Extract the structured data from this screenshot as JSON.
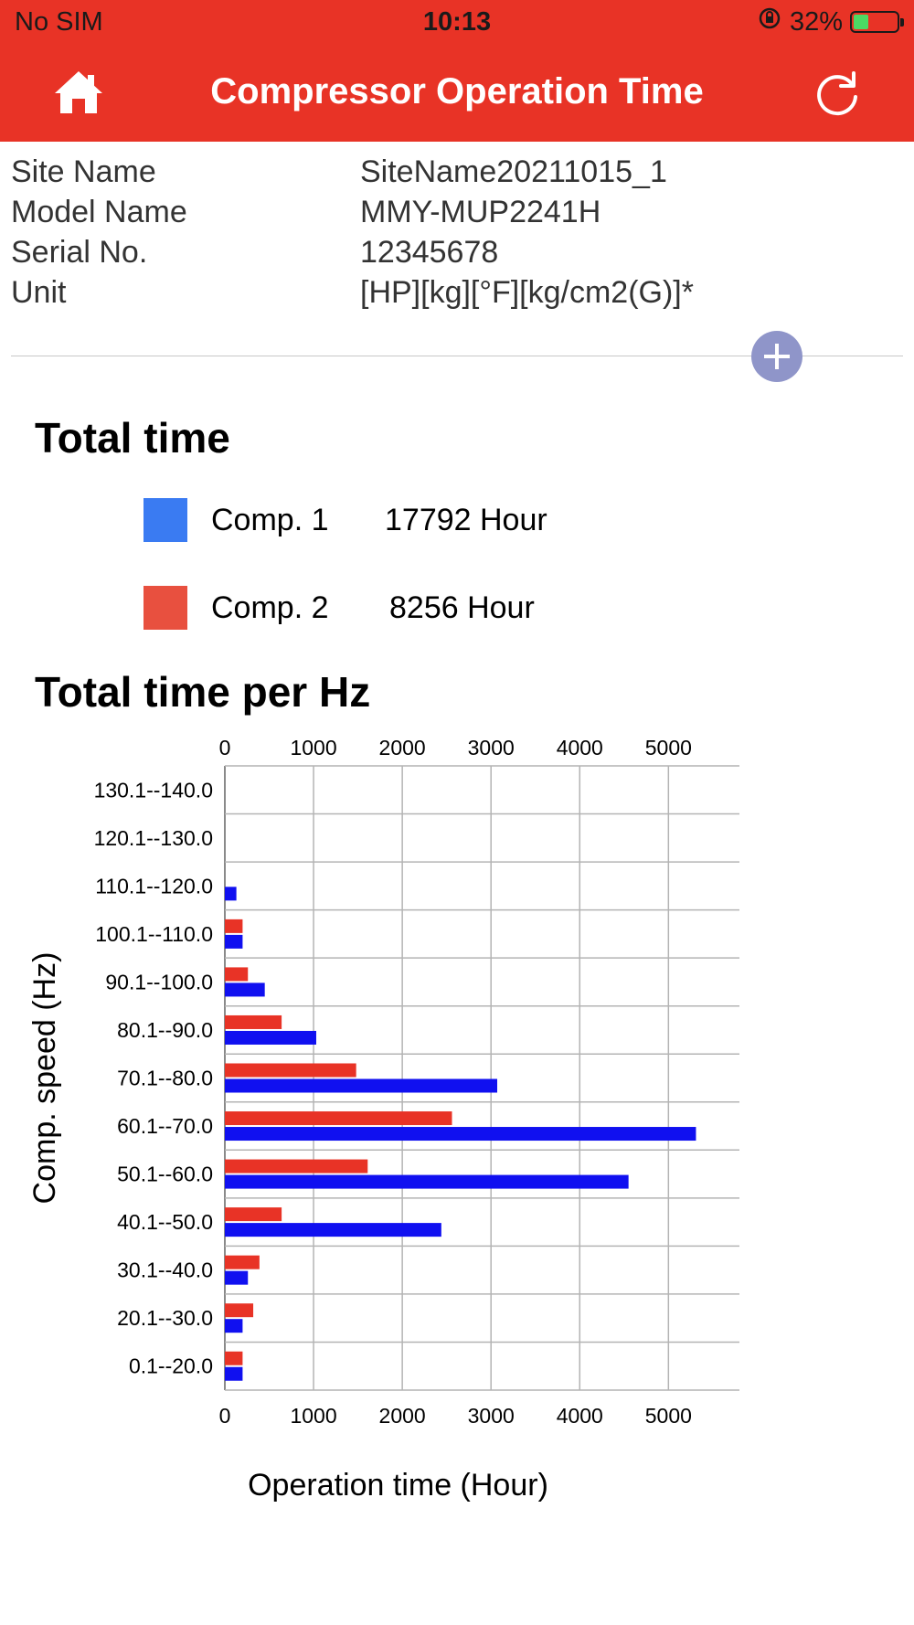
{
  "status": {
    "carrier": "No SIM",
    "time": "10:13",
    "battery": "32%"
  },
  "header": {
    "title": "Compressor Operation Time"
  },
  "info": [
    {
      "label": "Site Name",
      "value": "SiteName20211015_1"
    },
    {
      "label": "Model Name",
      "value": "MMY-MUP2241H"
    },
    {
      "label": "Serial No.",
      "value": "12345678"
    },
    {
      "label": "Unit",
      "value": "[HP][kg][°F][kg/cm2(G)]*"
    }
  ],
  "total_time": {
    "title": "Total time",
    "items": [
      {
        "name": "Comp. 1",
        "value": "17792 Hour",
        "color": "#3a7bf2"
      },
      {
        "name": "Comp. 2",
        "value": "8256 Hour",
        "color": "#e8503f"
      }
    ]
  },
  "chart_section": {
    "title": "Total time per Hz"
  },
  "chart_data": {
    "type": "bar",
    "orientation": "horizontal",
    "xlabel": "Operation time (Hour)",
    "ylabel": "Comp. speed (Hz)",
    "xlim": [
      0,
      5800
    ],
    "xticks": [
      0,
      1000,
      2000,
      3000,
      4000,
      5000
    ],
    "categories": [
      "130.1--140.0",
      "120.1--130.0",
      "110.1--120.0",
      "100.1--110.0",
      "90.1--100.0",
      "80.1--90.0",
      "70.1--80.0",
      "60.1--70.0",
      "50.1--60.0",
      "40.1--50.0",
      "30.1--40.0",
      "20.1--30.0",
      "0.1--20.0"
    ],
    "series": [
      {
        "values": [
          0,
          0,
          0,
          200,
          260,
          640,
          1480,
          2560,
          1610,
          640,
          390,
          320,
          200
        ],
        "color": "#e83326"
      },
      {
        "values": [
          0,
          0,
          130,
          200,
          450,
          1030,
          3070,
          5310,
          4550,
          2440,
          260,
          200,
          200
        ],
        "color": "#1010f0"
      }
    ],
    "grid": true
  }
}
